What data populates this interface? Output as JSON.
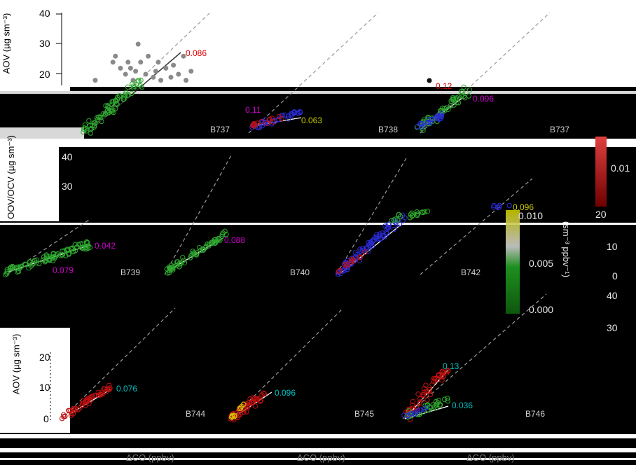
{
  "chart_data": {
    "type": "scatter",
    "top_panel": {
      "yticks": [
        "40",
        "30",
        "20"
      ],
      "ylabel": "AOV (µg sm⁻³)",
      "fit_annotations": [
        {
          "text": "0.086",
          "color": "#e00000"
        },
        {
          "text": "0.12",
          "color": "#e00000"
        }
      ],
      "points": [
        [
          10,
          18
        ],
        [
          17,
          24
        ],
        [
          18,
          26
        ],
        [
          20,
          22
        ],
        [
          22,
          20
        ],
        [
          23,
          24
        ],
        [
          24,
          22
        ],
        [
          25,
          18
        ],
        [
          26,
          21
        ],
        [
          27,
          30
        ],
        [
          28,
          24
        ],
        [
          30,
          20
        ],
        [
          31,
          26
        ],
        [
          33,
          19
        ],
        [
          34,
          21
        ],
        [
          35,
          24
        ],
        [
          36,
          18
        ],
        [
          38,
          22
        ],
        [
          40,
          19
        ],
        [
          41,
          23
        ],
        [
          43,
          20
        ],
        [
          45,
          26
        ],
        [
          46,
          18
        ],
        [
          48,
          21
        ]
      ]
    },
    "row1_labels": [
      {
        "text": "0.11",
        "color": "#cc00cc"
      },
      {
        "text": "0.063",
        "color": "#cccc00"
      },
      {
        "text": "0.096",
        "color": "#cc00cc"
      },
      {
        "text": "B737",
        "color": "#cfcfcf"
      },
      {
        "text": "B738",
        "color": "#cfcfcf"
      },
      {
        "text": "B737",
        "color": "#cfcfcf"
      }
    ],
    "row2": {
      "yticks": [
        "40",
        "30"
      ],
      "ylabel": "OOV/OCV (µg sm⁻³)",
      "labels": [
        {
          "text": "0.042",
          "color": "#cc00cc"
        },
        {
          "text": "0.079",
          "color": "#cc00cc"
        },
        {
          "text": "0.088",
          "color": "#cc00cc"
        },
        {
          "text": "0.096",
          "color": "#cccc00"
        },
        {
          "text": "B739",
          "color": "#cfcfcf"
        },
        {
          "text": "B740",
          "color": "#cfcfcf"
        },
        {
          "text": "B742",
          "color": "#cfcfcf"
        }
      ]
    },
    "colorbar": {
      "ticks": [
        "0.010",
        "0.005",
        "0.000"
      ],
      "label": "(sm⁻³ ppbv⁻¹)",
      "right_ticks": [
        "0.01"
      ]
    },
    "row3": {
      "yticks": [
        "20",
        "10",
        "0"
      ],
      "ylabel": "AOV (µg sm⁻³)",
      "labels": [
        {
          "text": "0.076",
          "color": "#00c0c0"
        },
        {
          "text": "0.096",
          "color": "#00c0c0"
        },
        {
          "text": "0.13",
          "color": "#00c0c0"
        },
        {
          "text": "0.036",
          "color": "#00c0c0"
        },
        {
          "text": "B744",
          "color": "#cfcfcf"
        },
        {
          "text": "B745",
          "color": "#cfcfcf"
        },
        {
          "text": "B746",
          "color": "#cfcfcf"
        }
      ],
      "xlabel": "ΔCO (ppbv)"
    },
    "right_panel_ticks": [
      "20",
      "10",
      "0",
      "40",
      "30"
    ],
    "ref_line_color": "#9a9a9a",
    "fit_line_color": "#ffffff",
    "point_colors": {
      "grey": "#8a8a8a",
      "green": "#2ea82e",
      "blue": "#2a2ad0",
      "red": "#c01010",
      "purple": "#a040c0",
      "yellow": "#d6c400"
    }
  }
}
